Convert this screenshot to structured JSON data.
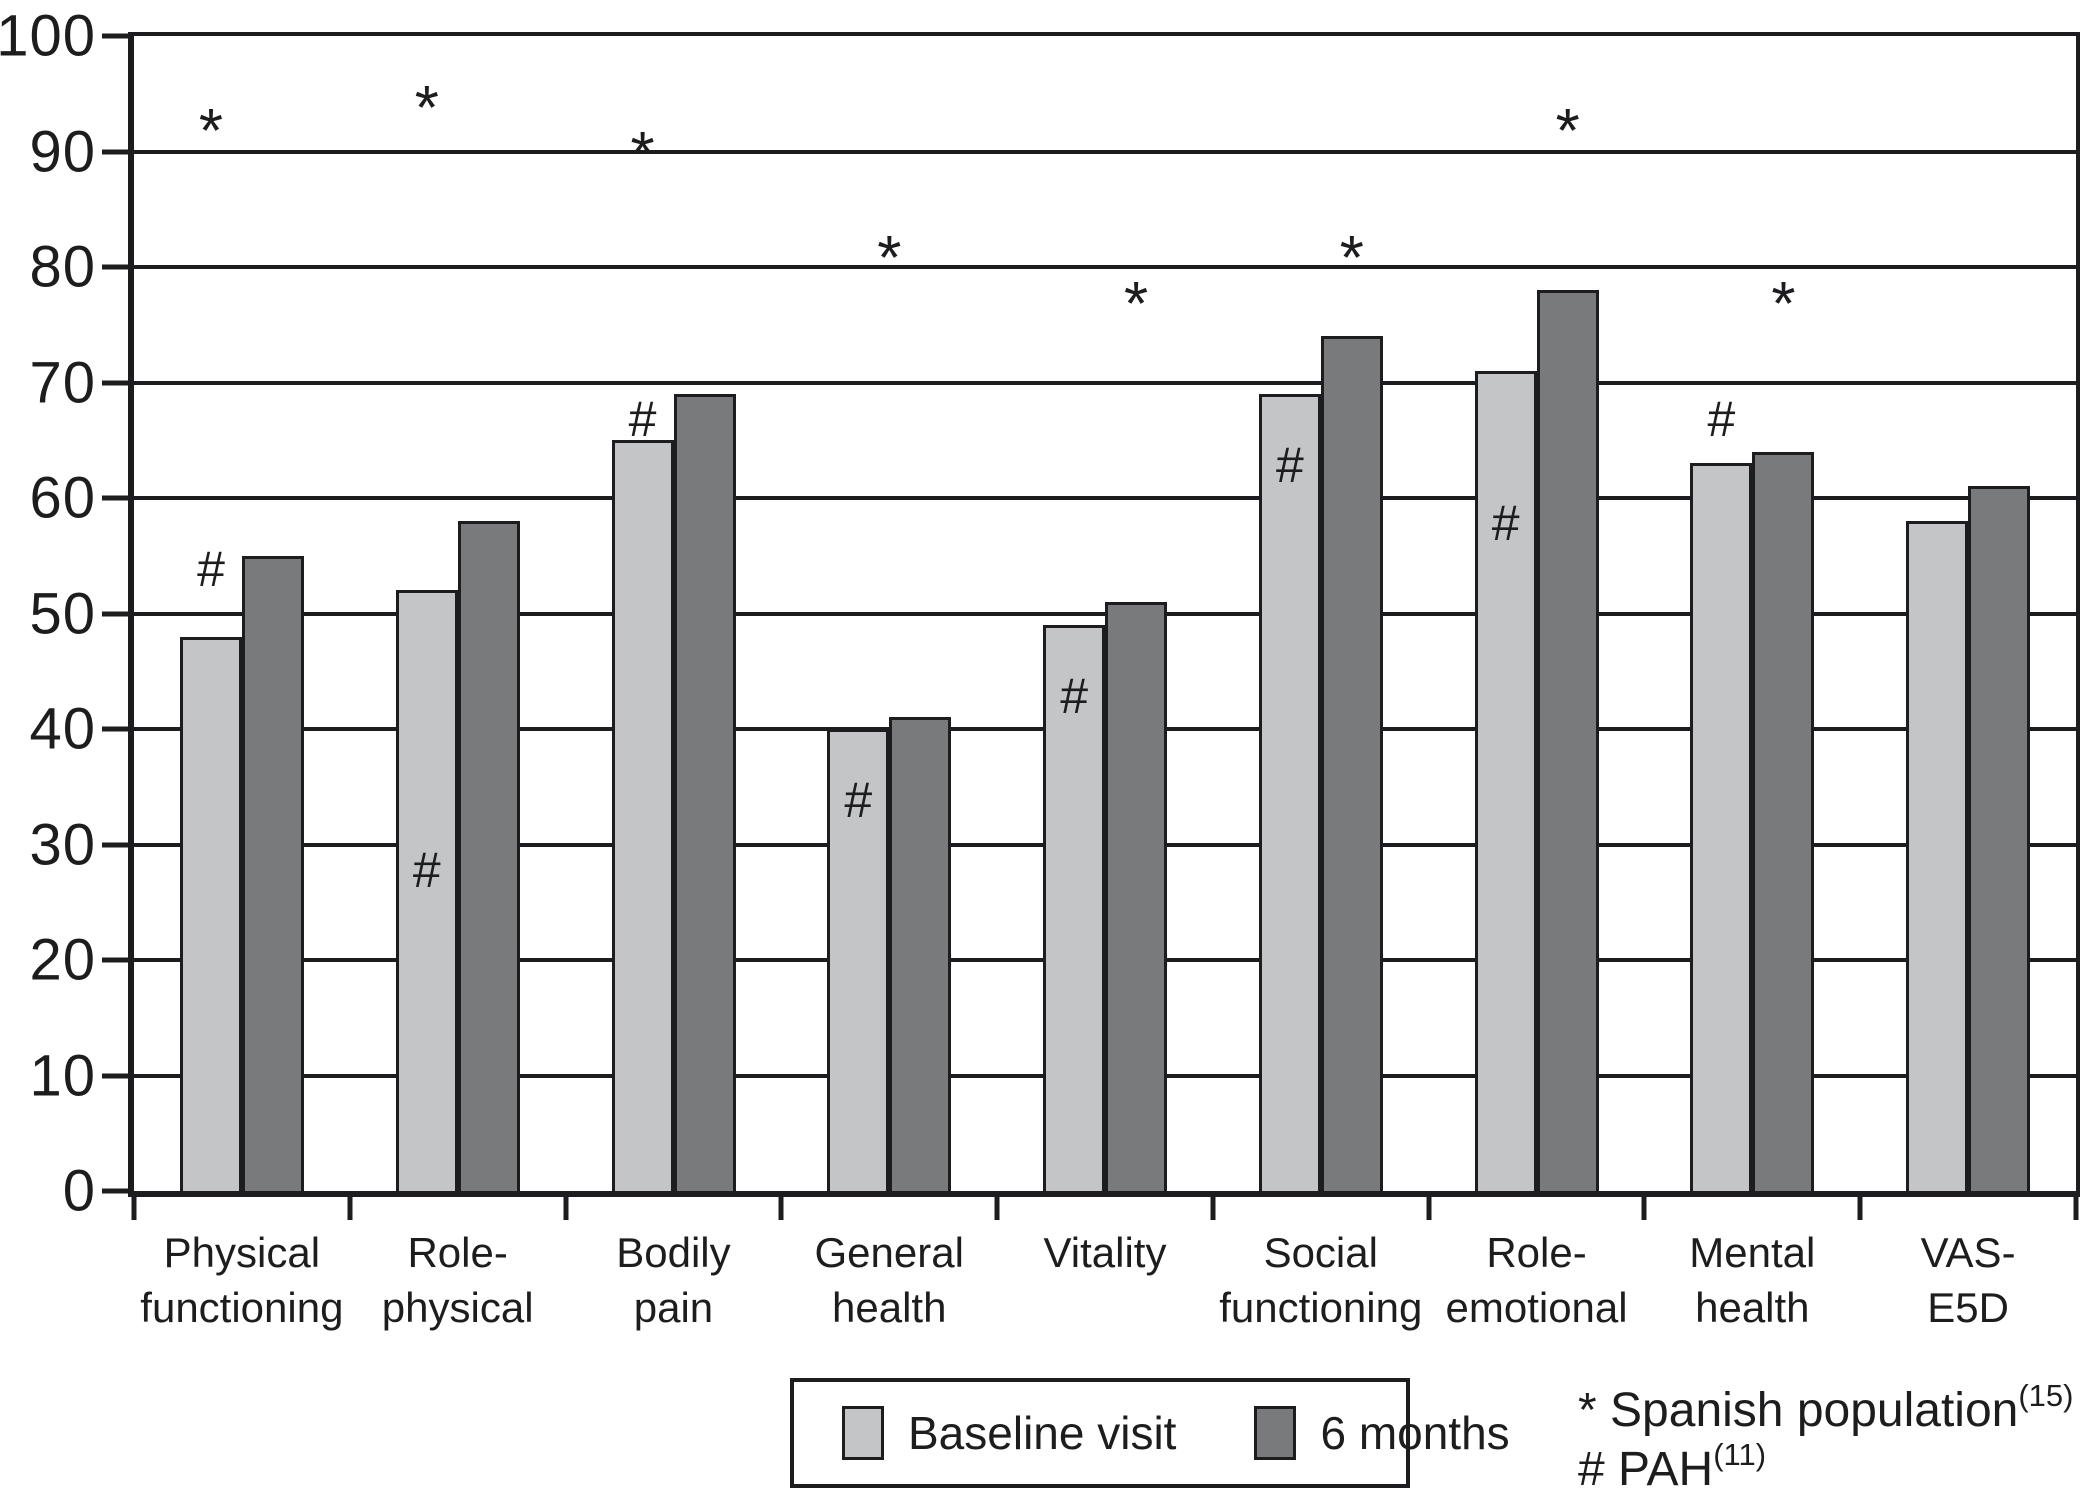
{
  "figure": {
    "background": "#ffffff",
    "ink_color": "#1d1d1f"
  },
  "chart_data": {
    "type": "bar",
    "title": "",
    "xlabel": "",
    "ylabel": "",
    "ylim": [
      0,
      100
    ],
    "yticks": [
      0,
      10,
      20,
      30,
      40,
      50,
      60,
      70,
      80,
      90,
      100
    ],
    "grid": "horizontal",
    "legend_position": "bottom-center",
    "categories": [
      "Physical functioning",
      "Role-physical",
      "Bodily pain",
      "General health",
      "Vitality",
      "Social functioning",
      "Role-emotional",
      "Mental health",
      "VAS-E5D"
    ],
    "category_display_lines": [
      "Physical\nfunctioning",
      "Role-\nphysical",
      "Bodily\npain",
      "General\nhealth",
      "Vitality",
      "Social\nfunctioning",
      "Role-\nemotional",
      "Mental\nhealth",
      "VAS-E5D"
    ],
    "series": [
      {
        "name": "Baseline visit",
        "color": "#c4c5c7",
        "values": [
          48,
          52,
          65,
          40,
          49,
          69,
          71,
          63,
          58
        ]
      },
      {
        "name": "6 months",
        "color": "#797a7c",
        "values": [
          55,
          58,
          69,
          41,
          51,
          74,
          78,
          64,
          61
        ]
      }
    ],
    "annotations": [
      {
        "category": "Physical functioning",
        "star": {
          "symbol": "*",
          "y": 93,
          "x_anchor": "baseline"
        },
        "hash": {
          "symbol": "#",
          "y": 54,
          "x_anchor": "baseline"
        }
      },
      {
        "category": "Role-physical",
        "star": {
          "symbol": "*",
          "y": 95,
          "x_anchor": "baseline"
        },
        "hash": {
          "symbol": "#",
          "y": 28,
          "x_anchor": "baseline"
        }
      },
      {
        "category": "Bodily pain",
        "star": {
          "symbol": "*",
          "y": 91,
          "x_anchor": "baseline"
        },
        "hash": {
          "symbol": "#",
          "y": 67,
          "x_anchor": "baseline"
        }
      },
      {
        "category": "General health",
        "star": {
          "symbol": "*",
          "y": 82,
          "x_anchor": "center"
        },
        "hash": {
          "symbol": "#",
          "y": 34,
          "x_anchor": "baseline"
        }
      },
      {
        "category": "Vitality",
        "star": {
          "symbol": "*",
          "y": 78,
          "x_anchor": "dark"
        },
        "hash": {
          "symbol": "#",
          "y": 43,
          "x_anchor": "baseline"
        }
      },
      {
        "category": "Social functioning",
        "star": {
          "symbol": "*",
          "y": 82,
          "x_anchor": "dark"
        },
        "hash": {
          "symbol": "#",
          "y": 63,
          "x_anchor": "baseline"
        }
      },
      {
        "category": "Role-emotional",
        "star": {
          "symbol": "*",
          "y": 93,
          "x_anchor": "dark"
        },
        "hash": {
          "symbol": "#",
          "y": 58,
          "x_anchor": "baseline"
        }
      },
      {
        "category": "Mental health",
        "star": {
          "symbol": "*",
          "y": 78,
          "x_anchor": "dark"
        },
        "hash": {
          "symbol": "#",
          "y": 67,
          "x_anchor": "baseline"
        }
      },
      {
        "category": "VAS-E5D",
        "star": null,
        "hash": null
      }
    ]
  },
  "legend": {
    "items": [
      {
        "label": "Baseline visit",
        "color": "#c4c5c7"
      },
      {
        "label": "6 months",
        "color": "#797a7c"
      }
    ]
  },
  "footnotes": [
    {
      "marker": "*",
      "text": "Spanish population",
      "superscript": "(15)"
    },
    {
      "marker": "#",
      "text": "PAH",
      "superscript": "(11)"
    }
  ]
}
